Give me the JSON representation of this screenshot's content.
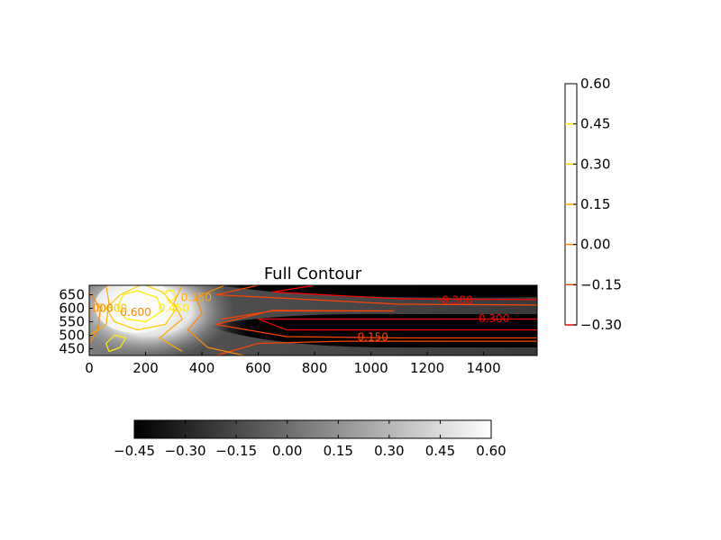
{
  "chart_data": {
    "type": "heatmap",
    "title": "Full Contour",
    "xlabel": "",
    "ylabel": "",
    "xlim": [
      0,
      1590
    ],
    "ylim": [
      425,
      685
    ],
    "x_ticks": [
      0,
      200,
      400,
      600,
      800,
      1000,
      1200,
      1400
    ],
    "y_ticks": [
      450,
      500,
      550,
      600,
      650
    ],
    "colormap": "gray",
    "grid": false,
    "filled_contour_levels": [
      -0.45,
      -0.3,
      -0.15,
      0.0,
      0.15,
      0.3,
      0.45,
      0.6
    ],
    "filled_colorbar": {
      "orientation": "horizontal",
      "ticks": [
        "−0.45",
        "−0.30",
        "−0.15",
        "0.00",
        "0.15",
        "0.30",
        "0.45",
        "0.60"
      ]
    },
    "line_contours": [
      {
        "level": -0.3,
        "color": "#ff0000"
      },
      {
        "level": -0.15,
        "color": "#ff4400"
      },
      {
        "level": 0.0,
        "color": "#ff8800"
      },
      {
        "level": 0.15,
        "color": "#ffaa00"
      },
      {
        "level": 0.3,
        "color": "#ffcc00"
      },
      {
        "level": 0.45,
        "color": "#ffee00"
      }
    ],
    "line_colorbar": {
      "orientation": "vertical",
      "range": [
        -0.3,
        0.6
      ],
      "ticks": [
        "0.60",
        "0.45",
        "0.30",
        "0.15",
        "0.00",
        "−0.15",
        "−0.30"
      ]
    },
    "contour_labels": [
      {
        "text": "-0.300",
        "x": 1300,
        "y": 630
      },
      {
        "text": "-0.300",
        "x": 1430,
        "y": 562
      },
      {
        "text": "-0.150",
        "x": 1000,
        "y": 493
      },
      {
        "text": "0.600",
        "x": 165,
        "y": 585
      },
      {
        "text": "0.450",
        "x": 300,
        "y": 600
      },
      {
        "text": "0.300",
        "x": 80,
        "y": 600
      },
      {
        "text": "0.150",
        "x": 380,
        "y": 640
      },
      {
        "text": "0.000",
        "x": 30,
        "y": 600
      }
    ]
  }
}
